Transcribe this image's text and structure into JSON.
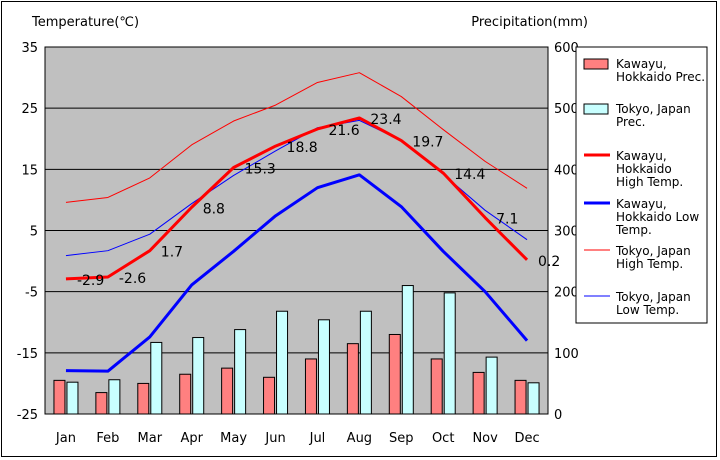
{
  "chart_data": {
    "type": "bar+line",
    "categories": [
      "Jan",
      "Feb",
      "Mar",
      "Apr",
      "May",
      "Jun",
      "Jul",
      "Aug",
      "Sep",
      "Oct",
      "Nov",
      "Dec"
    ],
    "left_axis": {
      "title": "Temperature(℃)",
      "range": [
        -25,
        35
      ],
      "ticks": [
        35,
        25,
        15,
        5,
        -5,
        -15,
        -25
      ]
    },
    "right_axis": {
      "title": "Precipitation(mm)",
      "range": [
        0,
        600
      ],
      "ticks": [
        600,
        500,
        400,
        300,
        200,
        100,
        0
      ]
    },
    "series": [
      {
        "name": "Kawayu, Hokkaido Prec.",
        "kind": "bar",
        "axis": "right",
        "color": "#ff8080",
        "values": [
          55,
          35,
          50,
          65,
          75,
          60,
          90,
          115,
          130,
          90,
          68,
          55
        ]
      },
      {
        "name": "Tokyo, Japan Prec.",
        "kind": "bar",
        "axis": "right",
        "color": "#c8ffff",
        "values": [
          52,
          56,
          117,
          125,
          138,
          168,
          154,
          168,
          210,
          198,
          93,
          51
        ]
      },
      {
        "name": "Kawayu, Hokkaido High Temp.",
        "kind": "line",
        "axis": "left",
        "color": "#ff0000",
        "width": 3,
        "values": [
          -2.9,
          -2.6,
          1.7,
          8.8,
          15.3,
          18.8,
          21.6,
          23.4,
          19.7,
          14.4,
          7.1,
          0.2
        ]
      },
      {
        "name": "Kawayu, Hokkaido Low Temp.",
        "kind": "line",
        "axis": "left",
        "color": "#0000ff",
        "width": 3,
        "values": [
          -17.9,
          -18,
          -12.4,
          -3.9,
          1.6,
          7.4,
          12,
          14.1,
          8.9,
          1.6,
          -5,
          -13
        ]
      },
      {
        "name": "Tokyo, Japan High Temp.",
        "kind": "line",
        "axis": "left",
        "color": "#ff0000",
        "width": 1,
        "values": [
          9.6,
          10.4,
          13.6,
          19,
          22.9,
          25.5,
          29.2,
          30.8,
          26.9,
          21.5,
          16.3,
          11.9
        ]
      },
      {
        "name": "Tokyo, Japan Low Temp.",
        "kind": "line",
        "axis": "left",
        "color": "#0000ff",
        "width": 1,
        "values": [
          0.9,
          1.7,
          4.4,
          9.4,
          14,
          18,
          21.8,
          23,
          19.7,
          14.2,
          8.3,
          3.5
        ]
      }
    ],
    "data_labels": {
      "series": "Kawayu, Hokkaido High Temp.",
      "texts": [
        "-2.9",
        "-2.6",
        "1.7",
        "8.8",
        "15.3",
        "18.8",
        "21.6",
        "23.4",
        "19.7",
        "14.4",
        "7.1",
        "0.2"
      ]
    },
    "legend": {
      "placement": "right",
      "items": [
        {
          "lines": [
            "Kawayu,",
            "Hokkaido Prec."
          ],
          "type": "bar",
          "color": "#ff8080"
        },
        {
          "lines": [
            "Tokyo, Japan",
            "Prec."
          ],
          "type": "bar",
          "color": "#c8ffff"
        },
        {
          "lines": [
            "Kawayu,",
            "Hokkaido",
            "High Temp."
          ],
          "type": "line",
          "color": "#ff0000",
          "width": 3
        },
        {
          "lines": [
            "Kawayu,",
            "Hokkaido Low",
            "Temp."
          ],
          "type": "line",
          "color": "#0000ff",
          "width": 3
        },
        {
          "lines": [
            "Tokyo, Japan",
            "High Temp."
          ],
          "type": "line",
          "color": "#ff0000",
          "width": 1
        },
        {
          "lines": [
            "Tokyo, Japan",
            "Low Temp."
          ],
          "type": "line",
          "color": "#0000ff",
          "width": 1
        }
      ]
    },
    "plot_background": "#c0c0c0",
    "grid": true
  }
}
